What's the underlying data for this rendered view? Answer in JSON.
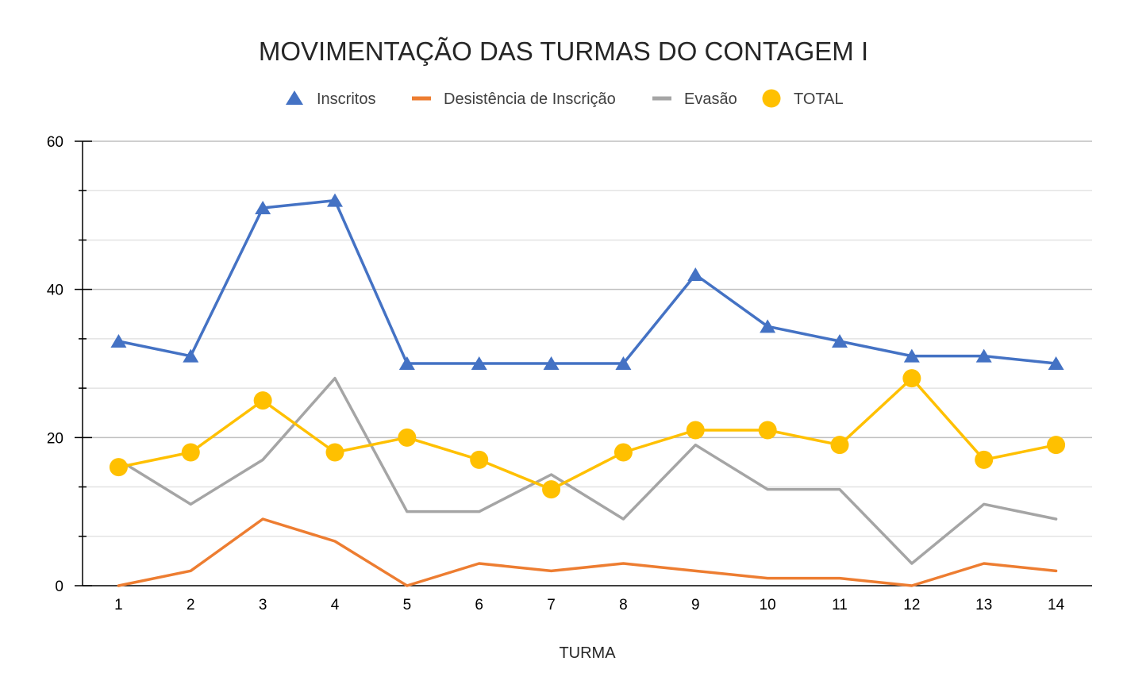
{
  "chart_data": {
    "type": "line",
    "title": "MOVIMENTAÇÃO DAS TURMAS DO CONTAGEM I",
    "xlabel": "TURMA",
    "ylabel": "",
    "categories": [
      "1",
      "2",
      "3",
      "4",
      "5",
      "6",
      "7",
      "8",
      "9",
      "10",
      "11",
      "12",
      "13",
      "14"
    ],
    "ylim": [
      0,
      60
    ],
    "y_ticks": [
      "0",
      "20",
      "40",
      "60"
    ],
    "grid": true,
    "legend_position": "top",
    "series": [
      {
        "name": "Inscritos",
        "color": "#4472C4",
        "marker": "triangle",
        "values": [
          33,
          31,
          51,
          52,
          30,
          30,
          30,
          30,
          42,
          35,
          33,
          31,
          31,
          30
        ]
      },
      {
        "name": "Desistência de Inscrição",
        "color": "#ED7D31",
        "marker": "none",
        "values": [
          0,
          2,
          9,
          6,
          0,
          3,
          2,
          3,
          2,
          1,
          1,
          0,
          3,
          2
        ]
      },
      {
        "name": "Evasão",
        "color": "#A5A5A5",
        "marker": "none",
        "values": [
          17,
          11,
          17,
          28,
          10,
          10,
          15,
          9,
          19,
          13,
          13,
          3,
          11,
          9
        ]
      },
      {
        "name": "TOTAL",
        "color": "#FFC000",
        "marker": "circle",
        "values": [
          16,
          18,
          25,
          18,
          20,
          17,
          13,
          18,
          21,
          21,
          19,
          28,
          17,
          19
        ]
      }
    ]
  }
}
